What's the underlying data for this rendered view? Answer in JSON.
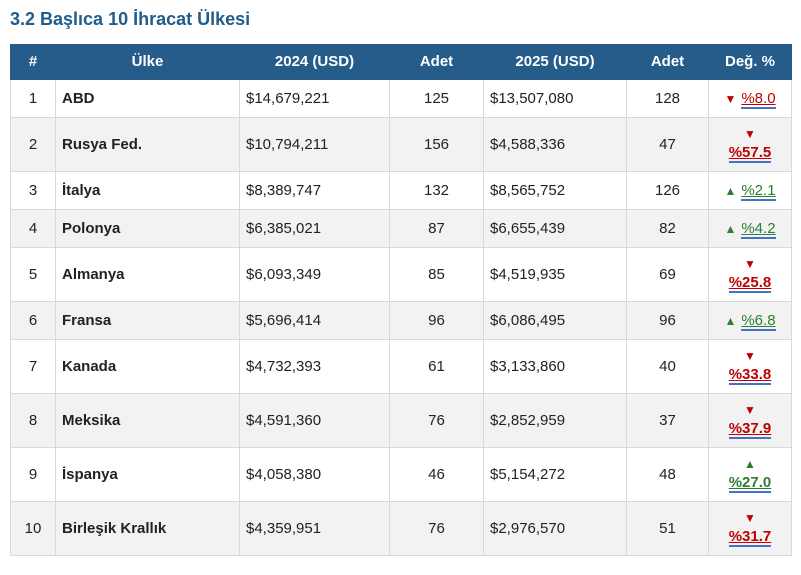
{
  "page": {
    "title": "3.2 Başlıca 10 İhracat Ülkesi"
  },
  "colors": {
    "header_bg": "#265c8a",
    "title": "#205d8c",
    "decrease": "#c00000",
    "increase": "#2e7d32",
    "underline_accent": "#4472c4",
    "zebra": "#f2f2f2"
  },
  "table": {
    "headers": [
      "#",
      "Ülke",
      "2024 (USD)",
      "Adet",
      "2025 (USD)",
      "Adet",
      "Değ. %"
    ],
    "rows": [
      {
        "rank": "1",
        "country": "ABD",
        "usd_2024": "$14,679,221",
        "qty_2024": "125",
        "usd_2025": "$13,507,080",
        "qty_2025": "128",
        "change": {
          "direction": "down",
          "value": "%8.0"
        }
      },
      {
        "rank": "2",
        "country": "Rusya Fed.",
        "usd_2024": "$10,794,211",
        "qty_2024": "156",
        "usd_2025": "$4,588,336",
        "qty_2025": "47",
        "change": {
          "direction": "down",
          "value": "%57.5"
        }
      },
      {
        "rank": "3",
        "country": "İtalya",
        "usd_2024": "$8,389,747",
        "qty_2024": "132",
        "usd_2025": "$8,565,752",
        "qty_2025": "126",
        "change": {
          "direction": "up",
          "value": "%2.1"
        }
      },
      {
        "rank": "4",
        "country": "Polonya",
        "usd_2024": "$6,385,021",
        "qty_2024": "87",
        "usd_2025": "$6,655,439",
        "qty_2025": "82",
        "change": {
          "direction": "up",
          "value": "%4.2"
        }
      },
      {
        "rank": "5",
        "country": "Almanya",
        "usd_2024": "$6,093,349",
        "qty_2024": "85",
        "usd_2025": "$4,519,935",
        "qty_2025": "69",
        "change": {
          "direction": "down",
          "value": "%25.8"
        }
      },
      {
        "rank": "6",
        "country": "Fransa",
        "usd_2024": "$5,696,414",
        "qty_2024": "96",
        "usd_2025": "$6,086,495",
        "qty_2025": "96",
        "change": {
          "direction": "up",
          "value": "%6.8"
        }
      },
      {
        "rank": "7",
        "country": "Kanada",
        "usd_2024": "$4,732,393",
        "qty_2024": "61",
        "usd_2025": "$3,133,860",
        "qty_2025": "40",
        "change": {
          "direction": "down",
          "value": "%33.8"
        }
      },
      {
        "rank": "8",
        "country": "Meksika",
        "usd_2024": "$4,591,360",
        "qty_2024": "76",
        "usd_2025": "$2,852,959",
        "qty_2025": "37",
        "change": {
          "direction": "down",
          "value": "%37.9"
        }
      },
      {
        "rank": "9",
        "country": "İspanya",
        "usd_2024": "$4,058,380",
        "qty_2024": "46",
        "usd_2025": "$5,154,272",
        "qty_2025": "48",
        "change": {
          "direction": "up",
          "value": "%27.0"
        }
      },
      {
        "rank": "10",
        "country": "Birleşik Krallık",
        "usd_2024": "$4,359,951",
        "qty_2024": "76",
        "usd_2025": "$2,976,570",
        "qty_2025": "51",
        "change": {
          "direction": "down",
          "value": "%31.7"
        }
      }
    ]
  }
}
